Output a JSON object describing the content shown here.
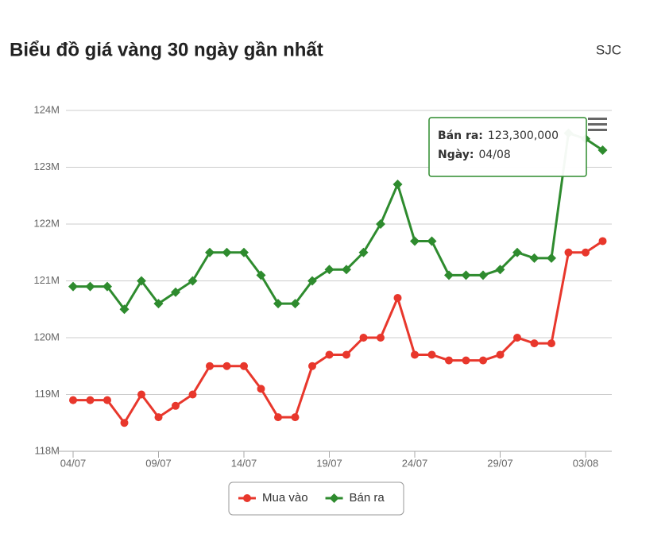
{
  "chart_data": {
    "type": "line",
    "title": "Biểu đồ giá vàng 30 ngày gần nhất",
    "subtitle": "SJC",
    "categories": [
      "04/07",
      null,
      null,
      null,
      null,
      "09/07",
      null,
      null,
      null,
      null,
      "14/07",
      null,
      null,
      null,
      null,
      "19/07",
      null,
      null,
      null,
      null,
      "24/07",
      null,
      null,
      null,
      null,
      "29/07",
      null,
      null,
      null,
      null,
      "03/08",
      null
    ],
    "series": [
      {
        "name": "Mua vào",
        "color": "#e8372c",
        "marker": "circle",
        "values": [
          118900000,
          118900000,
          118900000,
          118500000,
          119000000,
          118600000,
          118800000,
          119000000,
          119500000,
          119500000,
          119500000,
          119100000,
          118600000,
          118600000,
          119500000,
          119700000,
          119700000,
          120000000,
          120000000,
          120700000,
          119700000,
          119700000,
          119600000,
          119600000,
          119600000,
          119700000,
          120000000,
          119900000,
          119900000,
          121500000,
          121500000,
          121700000
        ]
      },
      {
        "name": "Bán ra",
        "color": "#2e8b2e",
        "marker": "diamond",
        "values": [
          120900000,
          120900000,
          120900000,
          120500000,
          121000000,
          120600000,
          120800000,
          121000000,
          121500000,
          121500000,
          121500000,
          121100000,
          120600000,
          120600000,
          121000000,
          121200000,
          121200000,
          121500000,
          122000000,
          122700000,
          121700000,
          121700000,
          121100000,
          121100000,
          121100000,
          121200000,
          121500000,
          121400000,
          121400000,
          123600000,
          123500000,
          123300000
        ]
      }
    ],
    "ylim": [
      118000000,
      124000000
    ],
    "yticks": [
      {
        "value": 118000000,
        "label": "118M"
      },
      {
        "value": 119000000,
        "label": "119M"
      },
      {
        "value": 120000000,
        "label": "120M"
      },
      {
        "value": 121000000,
        "label": "121M"
      },
      {
        "value": 122000000,
        "label": "122M"
      },
      {
        "value": 123000000,
        "label": "123M"
      },
      {
        "value": 124000000,
        "label": "124M"
      }
    ],
    "grid": true,
    "tooltip": {
      "series_label": "Bán ra:",
      "value": 123300000,
      "value_label": "123,300,000",
      "date_label": "Ngày:",
      "date": "04/08"
    }
  }
}
